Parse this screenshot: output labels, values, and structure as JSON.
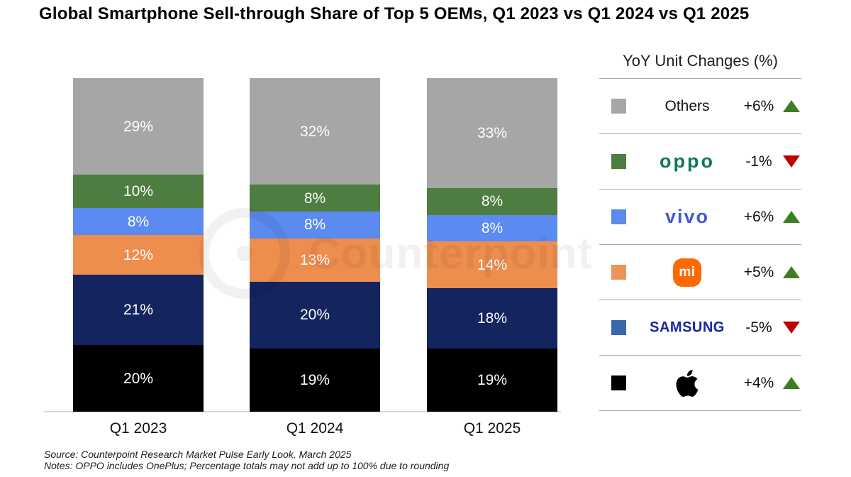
{
  "title": "Global Smartphone Sell-through Share of Top 5 OEMs, Q1 2023 vs Q1 2024 vs Q1 2025",
  "chart_data": {
    "type": "bar",
    "stacked": true,
    "categories": [
      "Q1 2023",
      "Q1 2024",
      "Q1 2025"
    ],
    "series": [
      {
        "name": "Apple",
        "color": "#000000",
        "values": [
          20,
          19,
          19
        ]
      },
      {
        "name": "Samsung",
        "color": "#13245f",
        "values": [
          21,
          20,
          18
        ]
      },
      {
        "name": "Xiaomi",
        "color": "#ed8d4e",
        "values": [
          12,
          13,
          14
        ]
      },
      {
        "name": "vivo",
        "color": "#5b8af0",
        "values": [
          8,
          8,
          8
        ]
      },
      {
        "name": "OPPO",
        "color": "#4e7d41",
        "values": [
          10,
          8,
          8
        ]
      },
      {
        "name": "Others",
        "color": "#a6a6a6",
        "values": [
          29,
          32,
          33
        ]
      }
    ],
    "value_suffix": "%",
    "ylim": [
      0,
      100
    ],
    "grid": false,
    "legend_position": "right"
  },
  "legend": {
    "header": "YoY Unit Changes (%)",
    "trend_up_color": "#3e7d23",
    "trend_down_color": "#c00000",
    "rows": [
      {
        "label": "Others",
        "logo": "plain",
        "logo_text": "Others",
        "logo_color": "#111111",
        "swatch": "#a6a6a6",
        "change": "+6%",
        "direction": "up"
      },
      {
        "label": "OPPO",
        "logo": "oppo",
        "logo_text": "oppo",
        "logo_color": "#0e7b52",
        "swatch": "#4e7d41",
        "change": "-1%",
        "direction": "down"
      },
      {
        "label": "vivo",
        "logo": "vivo",
        "logo_text": "vivo",
        "logo_color": "#4559d4",
        "swatch": "#5b8af0",
        "change": "+6%",
        "direction": "up"
      },
      {
        "label": "Xiaomi",
        "logo": "mi",
        "logo_text": "mi",
        "logo_color": "#ff6900",
        "swatch": "#ec9458",
        "change": "+5%",
        "direction": "up"
      },
      {
        "label": "Samsung",
        "logo": "samsung",
        "logo_text": "SAMSUNG",
        "logo_color": "#1428a0",
        "swatch": "#3b67ab",
        "change": "-5%",
        "direction": "down"
      },
      {
        "label": "Apple",
        "logo": "apple",
        "logo_text": "",
        "logo_color": "#000000",
        "swatch": "#000000",
        "change": "+4%",
        "direction": "up"
      }
    ]
  },
  "watermark": {
    "text": "Counterpoint"
  },
  "footer": {
    "source": "Source: Counterpoint Research Market Pulse Early Look, March 2025",
    "notes": "Notes: OPPO includes OnePlus; Percentage totals may not add up to 100% due to rounding"
  }
}
